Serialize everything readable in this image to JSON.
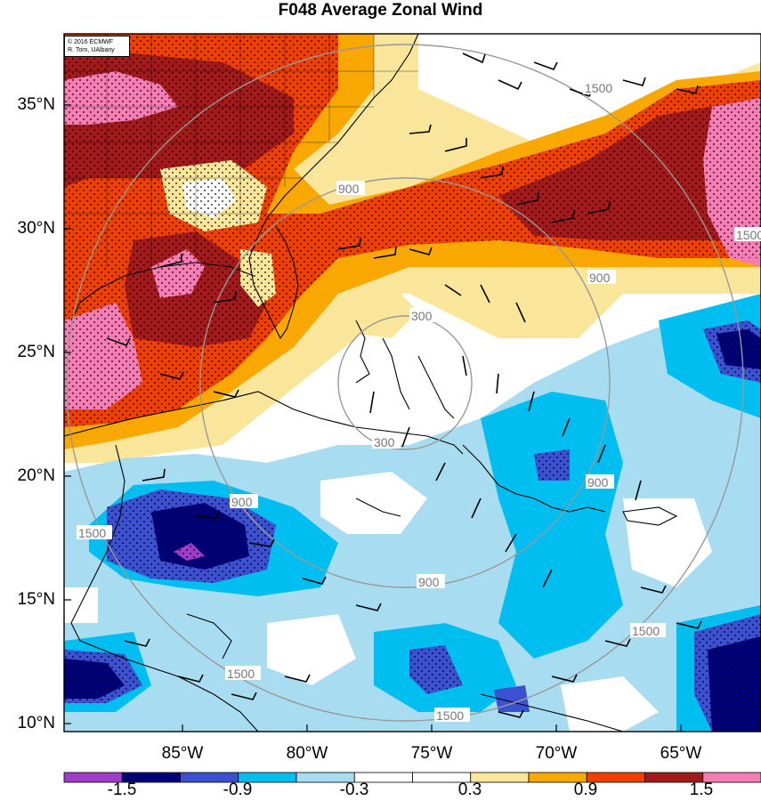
{
  "title": "F048 Average Zonal Wind",
  "copyright": {
    "line1": "© 2016 ECMWF",
    "line2": "R. Torn, UAlbany"
  },
  "axes": {
    "latitude_labels": [
      "35°N",
      "30°N",
      "25°N",
      "20°N",
      "15°N",
      "10°N"
    ],
    "longitude_labels": [
      "85°W",
      "80°W",
      "75°W",
      "70°W",
      "65°W"
    ]
  },
  "range_rings": {
    "labels": [
      "300",
      "300",
      "900",
      "900",
      "900",
      "900",
      "900",
      "1500",
      "1500",
      "1500",
      "1500",
      "1500",
      "1500"
    ]
  },
  "colorbar": {
    "colors": [
      "#a03ccc",
      "#00007a",
      "#3c50d2",
      "#00bef0",
      "#a8dcf0",
      "#ffffff",
      "#ffffff",
      "#fae69a",
      "#f8a800",
      "#f04000",
      "#a41a1a",
      "#f57db4"
    ],
    "tick_labels": [
      "-1.5",
      "-0.9",
      "-0.3",
      "0.3",
      "0.9",
      "1.5"
    ]
  },
  "palette": {
    "land_line": "#000000",
    "ring_color": "#999999"
  }
}
